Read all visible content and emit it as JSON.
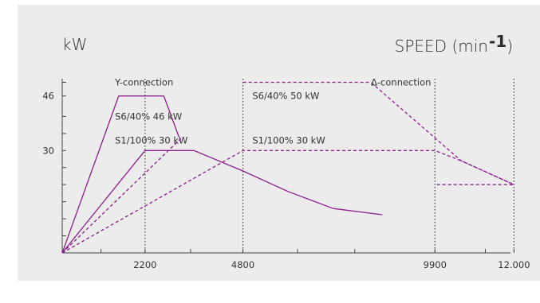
{
  "chart_data": {
    "type": "line",
    "ylabel": "kW",
    "xlabel": "SPEED (min",
    "xlabel_exponent": "-1",
    "ylim": [
      0,
      50
    ],
    "xlim": [
      0,
      12500
    ],
    "x_ticks": [
      {
        "value": 2200,
        "label": "2200"
      },
      {
        "value": 4800,
        "label": "4800"
      },
      {
        "value": 9900,
        "label": "9900"
      },
      {
        "value": 12000,
        "label": "12.000"
      }
    ],
    "y_ticks": [
      {
        "value": 46,
        "label": "46"
      },
      {
        "value": 30,
        "label": "30"
      }
    ],
    "minor_x_ticks": [
      1030,
      2200,
      3410,
      4800,
      6250,
      7770,
      9900,
      11240,
      12000
    ],
    "minor_y_ticks": [
      5,
      10,
      15,
      20,
      25,
      30,
      35,
      40,
      46,
      50
    ],
    "vertical_guides": [
      2200,
      4800,
      9900,
      12000
    ],
    "series": [
      {
        "style": "solid",
        "points": [
          [
            0,
            0
          ],
          [
            1500,
            46
          ],
          [
            2700,
            46
          ],
          [
            3100,
            34
          ]
        ]
      },
      {
        "style": "solid",
        "points": [
          [
            0,
            0
          ],
          [
            2200,
            30
          ],
          [
            3500,
            30
          ],
          [
            4800,
            24
          ],
          [
            6000,
            18
          ],
          [
            7200,
            13
          ],
          [
            8500,
            11.2
          ]
        ]
      },
      {
        "style": "dashed",
        "points": [
          [
            0,
            0
          ],
          [
            3200,
            34
          ]
        ]
      },
      {
        "style": "dashed",
        "points": [
          [
            0,
            0
          ],
          [
            4800,
            30
          ],
          [
            9900,
            30
          ],
          [
            10600,
            27
          ],
          [
            12000,
            20
          ]
        ]
      },
      {
        "style": "dashed",
        "points": [
          [
            4800,
            50
          ],
          [
            8200,
            50
          ],
          [
            10600,
            27
          ],
          [
            12000,
            20
          ],
          [
            9900,
            20
          ]
        ]
      }
    ],
    "annotations": [
      {
        "text": "Y-connection",
        "x": 1400,
        "y": 50
      },
      {
        "text": "Δ-connection",
        "x": 8200,
        "y": 50
      },
      {
        "text": "S6/40% 46 kW",
        "x": 1400,
        "y": 40
      },
      {
        "text": "S1/100% 30 kW",
        "x": 1400,
        "y": 33
      },
      {
        "text": "S6/40% 50 kW",
        "x": 5050,
        "y": 46
      },
      {
        "text": "S1/100% 30 kW",
        "x": 5050,
        "y": 33
      }
    ],
    "colors": {
      "series": "#8b1f8b",
      "axis": "#444444",
      "guide": "#444444",
      "background": "#ececec"
    }
  }
}
